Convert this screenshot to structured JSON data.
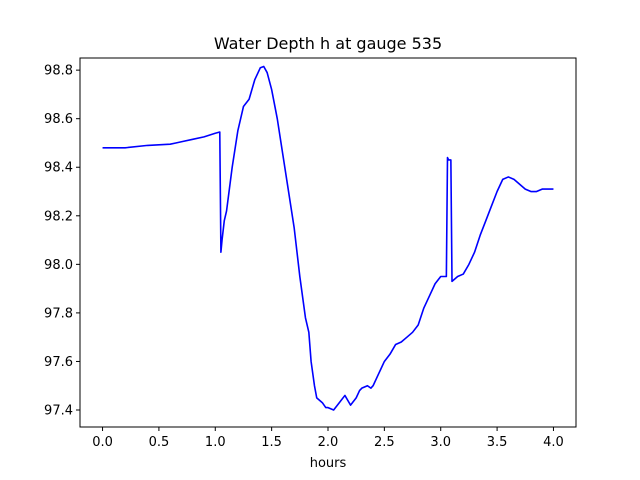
{
  "chart_data": {
    "type": "line",
    "title": "Water Depth h at gauge 535",
    "xlabel": "hours",
    "ylabel": "",
    "xlim": [
      -0.2,
      4.2
    ],
    "ylim": [
      97.33,
      98.85
    ],
    "xticks": [
      0.0,
      0.5,
      1.0,
      1.5,
      2.0,
      2.5,
      3.0,
      3.5,
      4.0
    ],
    "xtick_labels": [
      "0.0",
      "0.5",
      "1.0",
      "1.5",
      "2.0",
      "2.5",
      "3.0",
      "3.5",
      "4.0"
    ],
    "yticks": [
      97.4,
      97.6,
      97.8,
      98.0,
      98.2,
      98.4,
      98.6,
      98.8
    ],
    "ytick_labels": [
      "97.4",
      "97.6",
      "97.8",
      "98.0",
      "98.2",
      "98.4",
      "98.6",
      "98.8"
    ],
    "grid": false,
    "line_color": "#0000ff",
    "series": [
      {
        "x": [
          0.0,
          0.2,
          0.4,
          0.6,
          0.65,
          0.7,
          0.8,
          0.9,
          1.0,
          1.04,
          1.05,
          1.06,
          1.08,
          1.1,
          1.15,
          1.2,
          1.25,
          1.3,
          1.35,
          1.4,
          1.43,
          1.46,
          1.5,
          1.55,
          1.6,
          1.65,
          1.7,
          1.75,
          1.8,
          1.83,
          1.85,
          1.88,
          1.9,
          1.95,
          1.98,
          2.0,
          2.05,
          2.1,
          2.15,
          2.2,
          2.25,
          2.28,
          2.3,
          2.35,
          2.38,
          2.4,
          2.45,
          2.5,
          2.55,
          2.6,
          2.65,
          2.7,
          2.75,
          2.8,
          2.85,
          2.9,
          2.95,
          3.0,
          3.05,
          3.06,
          3.07,
          3.09,
          3.1,
          3.15,
          3.2,
          3.25,
          3.3,
          3.35,
          3.4,
          3.45,
          3.5,
          3.55,
          3.6,
          3.65,
          3.7,
          3.75,
          3.8,
          3.85,
          3.9,
          3.95,
          4.0
        ],
        "y": [
          98.48,
          98.48,
          98.49,
          98.495,
          98.5,
          98.505,
          98.515,
          98.525,
          98.54,
          98.545,
          98.05,
          98.1,
          98.18,
          98.22,
          98.4,
          98.55,
          98.65,
          98.68,
          98.76,
          98.81,
          98.815,
          98.79,
          98.72,
          98.6,
          98.45,
          98.3,
          98.15,
          97.95,
          97.78,
          97.72,
          97.6,
          97.5,
          97.45,
          97.43,
          97.41,
          97.41,
          97.4,
          97.43,
          97.46,
          97.42,
          97.45,
          97.48,
          97.49,
          97.5,
          97.49,
          97.5,
          97.55,
          97.6,
          97.63,
          97.67,
          97.68,
          97.7,
          97.72,
          97.75,
          97.82,
          97.87,
          97.92,
          97.95,
          97.95,
          98.44,
          98.43,
          98.43,
          97.93,
          97.95,
          97.96,
          98.0,
          98.05,
          98.12,
          98.18,
          98.24,
          98.3,
          98.35,
          98.36,
          98.35,
          98.33,
          98.31,
          98.3,
          98.3,
          98.31,
          98.31,
          98.31
        ]
      }
    ]
  }
}
